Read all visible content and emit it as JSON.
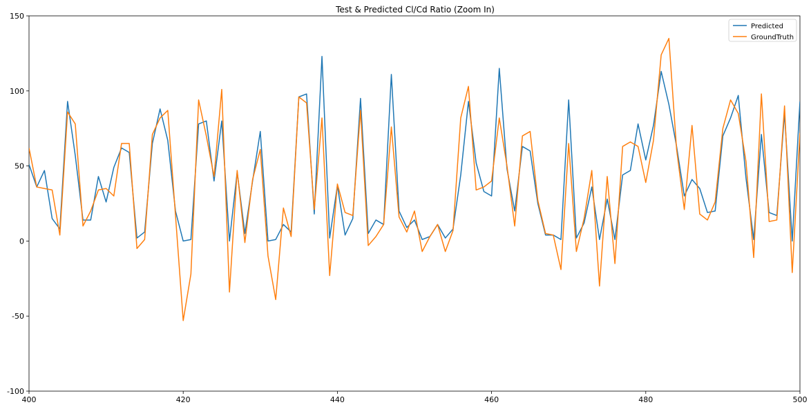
{
  "chart_data": {
    "type": "line",
    "title": "Test & Predicted Cl/Cd Ratio (Zoom In)",
    "xlabel": "",
    "ylabel": "",
    "xlim": [
      400,
      500
    ],
    "ylim": [
      -100,
      150
    ],
    "x_ticks": [
      400,
      420,
      440,
      460,
      480,
      500
    ],
    "y_ticks": [
      -100,
      -50,
      0,
      50,
      100,
      150
    ],
    "grid": false,
    "legend_position": "top-right",
    "x": [
      400,
      401,
      402,
      403,
      404,
      405,
      406,
      407,
      408,
      409,
      410,
      411,
      412,
      413,
      414,
      415,
      416,
      417,
      418,
      419,
      420,
      421,
      422,
      423,
      424,
      425,
      426,
      427,
      428,
      429,
      430,
      431,
      432,
      433,
      434,
      435,
      436,
      437,
      438,
      439,
      440,
      441,
      442,
      443,
      444,
      445,
      446,
      447,
      448,
      449,
      450,
      451,
      452,
      453,
      454,
      455,
      456,
      457,
      458,
      459,
      460,
      461,
      462,
      463,
      464,
      465,
      466,
      467,
      468,
      469,
      470,
      471,
      472,
      473,
      474,
      475,
      476,
      477,
      478,
      479,
      480,
      481,
      482,
      483,
      484,
      485,
      486,
      487,
      488,
      489,
      490,
      491,
      492,
      493,
      494,
      495,
      496,
      497,
      498,
      499,
      500
    ],
    "series": [
      {
        "name": "Predicted",
        "color": "#1f77b4",
        "values": [
          51,
          36,
          47,
          15,
          8,
          93,
          57,
          14,
          14,
          43,
          26,
          49,
          62,
          59,
          2,
          6,
          65,
          88,
          67,
          20,
          0,
          1,
          78,
          80,
          40,
          80,
          0,
          46,
          5,
          40,
          73,
          0,
          1,
          11,
          6,
          96,
          98,
          18,
          123,
          2,
          37,
          4,
          15,
          95,
          5,
          14,
          11,
          111,
          20,
          9,
          14,
          1,
          3,
          11,
          2,
          8,
          44,
          93,
          52,
          33,
          30,
          115,
          48,
          20,
          63,
          60,
          25,
          4,
          4,
          1,
          94,
          2,
          12,
          36,
          1,
          28,
          1,
          44,
          47,
          78,
          54,
          77,
          113,
          91,
          63,
          30,
          41,
          35,
          19,
          20,
          70,
          82,
          97,
          42,
          1,
          71,
          19,
          17,
          85,
          0,
          93
        ]
      },
      {
        "name": "GroundTruth",
        "color": "#ff7f0e",
        "values": [
          62,
          36,
          35,
          34,
          4,
          86,
          78,
          10,
          20,
          34,
          35,
          30,
          65,
          65,
          -5,
          1,
          71,
          82,
          87,
          17,
          -53,
          -22,
          94,
          70,
          43,
          101,
          -34,
          47,
          -1,
          41,
          61,
          -10,
          -39,
          22,
          3,
          96,
          92,
          21,
          82,
          -23,
          38,
          19,
          17,
          87,
          -3,
          3,
          11,
          76,
          16,
          6,
          20,
          -7,
          3,
          11,
          -7,
          7,
          82,
          103,
          34,
          36,
          40,
          82,
          50,
          10,
          70,
          73,
          27,
          5,
          4,
          -19,
          65,
          -7,
          15,
          47,
          -30,
          43,
          -15,
          63,
          66,
          63,
          39,
          67,
          124,
          135,
          61,
          21,
          77,
          18,
          14,
          26,
          75,
          94,
          85,
          53,
          -11,
          98,
          13,
          14,
          90,
          -21,
          72
        ]
      }
    ]
  }
}
